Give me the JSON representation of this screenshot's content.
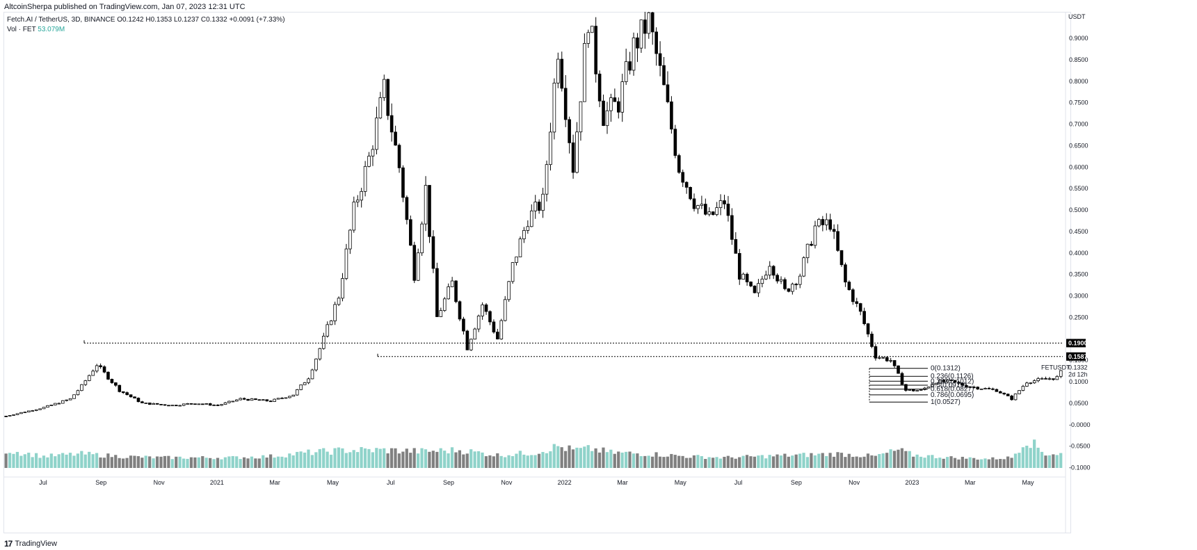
{
  "publisher": "AltcoinSherpa published on TradingView.com, Jan 07, 2023 12:31 UTC",
  "legend": {
    "symbol_line": "Fetch.AI / TetherUS, 3D, BINANCE",
    "ohlc": "O0.1242 H0.1353 L0.1237 C0.1332 +0.0091 (+7.33%)",
    "vol_label": "Vol · FET",
    "vol_value": "53.079M"
  },
  "footer": {
    "logo": "17",
    "brand": "TradingView"
  },
  "colors": {
    "up": "#ffffff",
    "down": "#000000",
    "vol_up": "#8fd3ca",
    "vol_down": "#808080",
    "accent": "#26a69a"
  },
  "chart_data": {
    "type": "candlestick",
    "ylabel": "USDT",
    "y_ticks": [
      "0.9000",
      "0.8500",
      "0.8000",
      "0.7500",
      "0.7000",
      "0.6500",
      "0.6000",
      "0.5500",
      "0.5000",
      "0.4500",
      "0.4000",
      "0.3500",
      "0.3000",
      "0.2500",
      "0.1500",
      "0.1000",
      "0.0500",
      "-0.0000",
      "-0.0500",
      "-0.1000"
    ],
    "x_ticks": [
      "Jul",
      "Sep",
      "Nov",
      "2021",
      "Mar",
      "May",
      "Jul",
      "Sep",
      "Nov",
      "2022",
      "Mar",
      "May",
      "Jul",
      "Sep",
      "Nov",
      "2023",
      "Mar",
      "May"
    ],
    "horizontal_lines": [
      {
        "value": 0.19,
        "label": "0.1900"
      },
      {
        "value": 0.1587,
        "label": "0.1587"
      }
    ],
    "fib_levels": [
      {
        "ratio": "0",
        "value": 0.1312,
        "label": "0(0.1312)"
      },
      {
        "ratio": "0.236",
        "value": 0.1126,
        "label": "0.236(0.1126)"
      },
      {
        "ratio": "0.382",
        "value": 0.1012,
        "label": "0.382(0.1012)"
      },
      {
        "ratio": "0.5",
        "value": 0.0919,
        "label": "0.5(0.0919)"
      },
      {
        "ratio": "0.618",
        "value": 0.0827,
        "label": "0.618(0.0827)"
      },
      {
        "ratio": "0.786",
        "value": 0.0695,
        "label": "0.786(0.0695)"
      },
      {
        "ratio": "1",
        "value": 0.0527,
        "label": "1(0.0527)"
      }
    ],
    "last_price": {
      "symbol": "FETUSDT",
      "value": "0.1332",
      "countdown": "2d 12h"
    },
    "price_path": [
      [
        0,
        0.02
      ],
      [
        10,
        0.04
      ],
      [
        17,
        0.06
      ],
      [
        20,
        0.09
      ],
      [
        24,
        0.14
      ],
      [
        27,
        0.11
      ],
      [
        30,
        0.08
      ],
      [
        36,
        0.05
      ],
      [
        44,
        0.045
      ],
      [
        50,
        0.05
      ],
      [
        56,
        0.045
      ],
      [
        62,
        0.06
      ],
      [
        70,
        0.055
      ],
      [
        76,
        0.07
      ],
      [
        80,
        0.11
      ],
      [
        84,
        0.2
      ],
      [
        88,
        0.3
      ],
      [
        92,
        0.5
      ],
      [
        96,
        0.62
      ],
      [
        100,
        0.78
      ],
      [
        104,
        0.6
      ],
      [
        108,
        0.35
      ],
      [
        111,
        0.55
      ],
      [
        114,
        0.25
      ],
      [
        118,
        0.33
      ],
      [
        122,
        0.18
      ],
      [
        126,
        0.28
      ],
      [
        130,
        0.2
      ],
      [
        134,
        0.37
      ],
      [
        138,
        0.48
      ],
      [
        142,
        0.52
      ],
      [
        146,
        0.88
      ],
      [
        150,
        0.6
      ],
      [
        154,
        0.95
      ],
      [
        158,
        0.72
      ],
      [
        162,
        0.75
      ],
      [
        166,
        0.88
      ],
      [
        170,
        0.94
      ],
      [
        174,
        0.78
      ],
      [
        178,
        0.6
      ],
      [
        182,
        0.52
      ],
      [
        186,
        0.48
      ],
      [
        190,
        0.52
      ],
      [
        194,
        0.35
      ],
      [
        198,
        0.3
      ],
      [
        202,
        0.38
      ],
      [
        206,
        0.31
      ],
      [
        210,
        0.35
      ],
      [
        214,
        0.46
      ],
      [
        218,
        0.47
      ],
      [
        222,
        0.33
      ],
      [
        226,
        0.26
      ],
      [
        230,
        0.16
      ],
      [
        234,
        0.15
      ],
      [
        238,
        0.08
      ],
      [
        242,
        0.08
      ],
      [
        246,
        0.1
      ],
      [
        250,
        0.1
      ],
      [
        254,
        0.09
      ],
      [
        258,
        0.085
      ],
      [
        262,
        0.08
      ],
      [
        266,
        0.06
      ],
      [
        270,
        0.1
      ],
      [
        274,
        0.105
      ],
      [
        278,
        0.11
      ],
      [
        280,
        0.133
      ]
    ],
    "volume_path": [
      [
        0,
        0.55
      ],
      [
        10,
        0.3
      ],
      [
        20,
        0.4
      ],
      [
        30,
        0.3
      ],
      [
        40,
        0.25
      ],
      [
        50,
        0.25
      ],
      [
        60,
        0.25
      ],
      [
        70,
        0.3
      ],
      [
        80,
        0.45
      ],
      [
        90,
        0.55
      ],
      [
        100,
        0.55
      ],
      [
        110,
        0.5
      ],
      [
        120,
        0.55
      ],
      [
        130,
        0.35
      ],
      [
        140,
        0.45
      ],
      [
        146,
        0.7
      ],
      [
        150,
        0.55
      ],
      [
        155,
        0.6
      ],
      [
        160,
        0.45
      ],
      [
        170,
        0.4
      ],
      [
        180,
        0.3
      ],
      [
        190,
        0.25
      ],
      [
        200,
        0.3
      ],
      [
        210,
        0.35
      ],
      [
        220,
        0.4
      ],
      [
        230,
        0.3
      ],
      [
        236,
        0.55
      ],
      [
        240,
        0.35
      ],
      [
        250,
        0.25
      ],
      [
        260,
        0.2
      ],
      [
        266,
        0.25
      ],
      [
        270,
        1.0
      ],
      [
        275,
        0.4
      ],
      [
        280,
        0.4
      ]
    ],
    "grid": false
  }
}
